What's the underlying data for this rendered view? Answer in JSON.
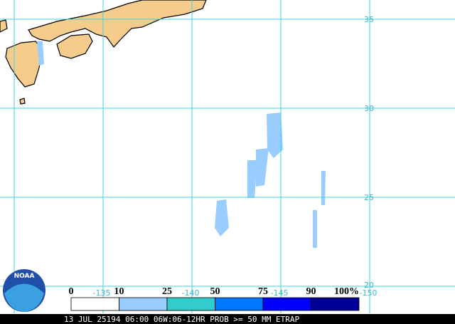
{
  "map": {
    "lat_labels": [
      "35",
      "30",
      "25",
      "20"
    ],
    "lon_labels": [
      "-135",
      "-140",
      "-145",
      "-150"
    ],
    "logo": "NOAA",
    "legend": {
      "labels": [
        "0",
        "10",
        "25",
        "50",
        "75",
        "90",
        "100%"
      ],
      "colors": [
        "#ffffff",
        "#99ccff",
        "#33cccc",
        "#0077ff",
        "#0000ff",
        "#000099"
      ]
    },
    "footer": "13 JUL 25194 06:00 06W:06-12HR PROB >= 50 MM ETRAP"
  }
}
